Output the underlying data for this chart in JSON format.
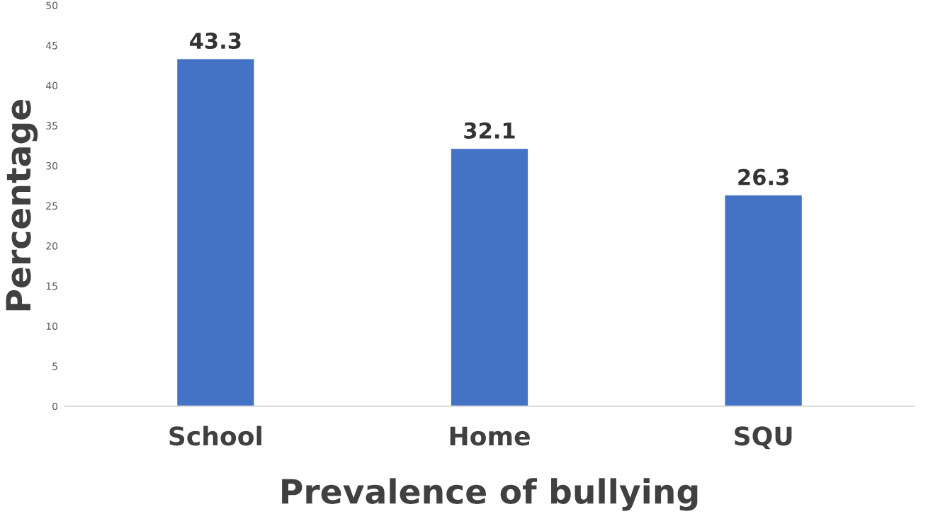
{
  "chart_data": {
    "type": "bar",
    "xlabel": "Prevalence of bullying",
    "ylabel": "Percentage",
    "categories": [
      "School",
      "Home",
      "SQU"
    ],
    "values": [
      43.3,
      32.1,
      26.3
    ],
    "color": "#4472c4",
    "ylim": [
      0,
      50
    ],
    "yticks": [
      0,
      5,
      10,
      15,
      20,
      25,
      30,
      35,
      40,
      45,
      50
    ],
    "grid": false,
    "data_labels": true
  }
}
